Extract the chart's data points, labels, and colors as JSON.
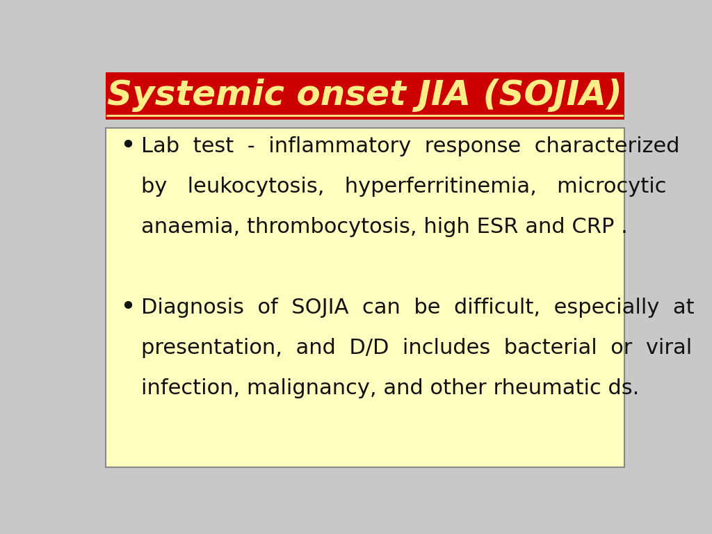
{
  "title": "Systemic onset JIA (SOJIA)",
  "title_color": "#FFEE88",
  "title_bg_color": "#CC0000",
  "title_fontsize": 36,
  "slide_bg_color": "#C8C8C8",
  "content_bg_color": "#FFFFC0",
  "content_border_color": "#888888",
  "bullet_lines": [
    "Lab  test  -  inflammatory  response  characterized",
    "by   leukocytosis,   hyperferritinemia,   microcytic",
    "anaemia, thrombocytosis, high ESR and CRP .",
    "",
    "Diagnosis  of  SOJIA  can  be  difficult,  especially  at",
    "presentation,  and  D/D  includes  bacterial  or  viral",
    "infection, malignancy, and other rheumatic ds."
  ],
  "bullet_indices": [
    0,
    4
  ],
  "text_color": "#111111",
  "text_fontsize": 22
}
